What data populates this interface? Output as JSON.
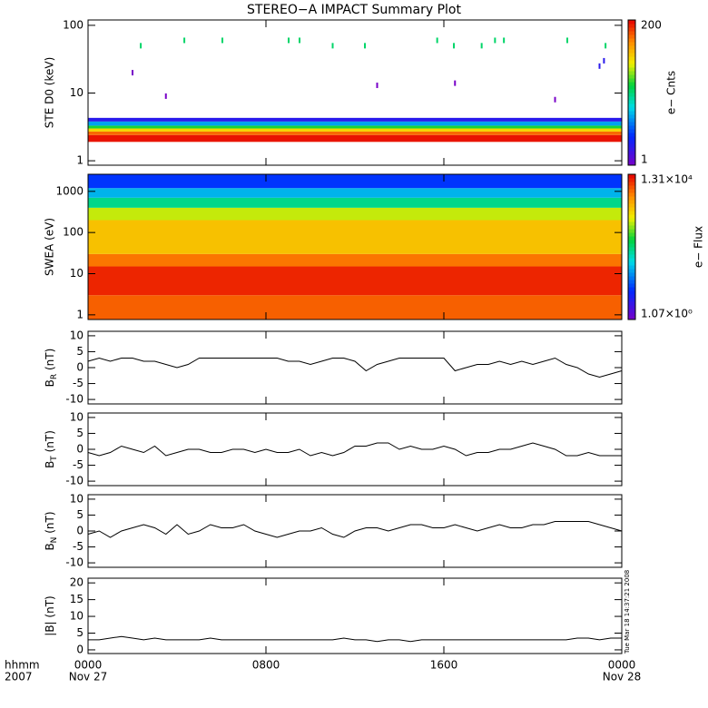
{
  "chart_data": [
    {
      "type": "heatmap",
      "title": "STEREO−A IMPACT Summary Plot",
      "ylabel": "STE D0 (keV)",
      "log_y": true,
      "ylim": [
        0.86,
        120
      ],
      "yticks": [
        1,
        10,
        100
      ],
      "edges": [
        1.9,
        2.4,
        2.7,
        3.0,
        3.3,
        3.8,
        4.3
      ],
      "levels": [
        180,
        110,
        50,
        20,
        6,
        2
      ],
      "points": {
        "x": [
          2.37,
          4.33,
          6.04,
          9.02,
          9.51,
          11.0,
          12.45,
          15.7,
          16.45,
          17.7,
          18.3,
          18.7,
          21.55,
          23.27,
          2.0,
          3.5,
          13.0,
          16.5,
          21.0,
          23.0,
          23.2
        ],
        "energy": [
          50,
          60,
          60,
          60,
          60,
          50,
          50,
          60,
          50,
          50,
          60,
          60,
          60,
          50,
          20,
          9,
          13,
          14,
          8,
          25,
          30
        ],
        "level": [
          15,
          15,
          15,
          15,
          15,
          15,
          15,
          15,
          15,
          15,
          15,
          15,
          15,
          15,
          1,
          1,
          1,
          1,
          1,
          2,
          2
        ]
      },
      "clim": [
        1,
        200
      ],
      "clabel": "e− Cnts"
    },
    {
      "type": "heatmap",
      "ylabel": "SWEA (eV)",
      "log_y": true,
      "ylim": [
        0.77,
        2600
      ],
      "yticks": [
        1,
        10,
        100,
        1000
      ],
      "edges": [
        0.77,
        3,
        15,
        30,
        200,
        400,
        700,
        1200,
        2600
      ],
      "levels": [
        5000,
        9000,
        4000,
        1500,
        600,
        100,
        30,
        8
      ],
      "clim": [
        1.07,
        13100
      ],
      "clim_labels": [
        "1.07×10⁰",
        "1.31×10⁴"
      ],
      "clabel": "e− Flux"
    },
    {
      "type": "line",
      "ylabel": {
        "text": "B",
        "sub": "R",
        "unit": " (nT)"
      },
      "ylim": [
        -11.4,
        11.4
      ],
      "yticks": [
        -10,
        -5,
        0,
        5,
        10
      ],
      "x": [
        0,
        0.5,
        1,
        1.5,
        2,
        2.5,
        3,
        3.5,
        4,
        4.5,
        5,
        5.5,
        6,
        6.5,
        7,
        7.5,
        8,
        8.5,
        9,
        9.5,
        10,
        10.5,
        11,
        11.5,
        12,
        12.5,
        13,
        13.5,
        14,
        14.5,
        15,
        15.5,
        16,
        16.5,
        17,
        17.5,
        18,
        18.5,
        19,
        19.5,
        20,
        20.5,
        21,
        21.5,
        22,
        22.5,
        23,
        23.5,
        24
      ],
      "values": [
        2,
        3,
        2,
        3,
        3,
        2,
        2,
        1,
        0,
        1,
        3,
        3,
        3,
        3,
        3,
        3,
        3,
        3,
        2,
        2,
        1,
        2,
        3,
        3,
        2,
        -1,
        1,
        2,
        3,
        3,
        3,
        3,
        3,
        -1,
        0,
        1,
        1,
        2,
        1,
        2,
        1,
        2,
        3,
        1,
        0,
        -2,
        -3,
        -2,
        -1
      ],
      "color": "#000000"
    },
    {
      "type": "line",
      "ylabel": {
        "text": "B",
        "sub": "T",
        "unit": " (nT)"
      },
      "ylim": [
        -11.4,
        11.4
      ],
      "yticks": [
        -10,
        -5,
        0,
        5,
        10
      ],
      "x": [
        0,
        0.5,
        1,
        1.5,
        2,
        2.5,
        3,
        3.5,
        4,
        4.5,
        5,
        5.5,
        6,
        6.5,
        7,
        7.5,
        8,
        8.5,
        9,
        9.5,
        10,
        10.5,
        11,
        11.5,
        12,
        12.5,
        13,
        13.5,
        14,
        14.5,
        15,
        15.5,
        16,
        16.5,
        17,
        17.5,
        18,
        18.5,
        19,
        19.5,
        20,
        20.5,
        21,
        21.5,
        22,
        22.5,
        23,
        23.5,
        24
      ],
      "values": [
        -1,
        -2,
        -1,
        1,
        0,
        -1,
        1,
        -2,
        -1,
        0,
        0,
        -1,
        -1,
        0,
        0,
        -1,
        0,
        -1,
        -1,
        0,
        -2,
        -1,
        -2,
        -1,
        1,
        1,
        2,
        2,
        0,
        1,
        0,
        0,
        1,
        0,
        -2,
        -1,
        -1,
        0,
        0,
        1,
        2,
        1,
        0,
        -2,
        -2,
        -1,
        -2,
        -2,
        -2
      ],
      "color": "#000000"
    },
    {
      "type": "line",
      "ylabel": {
        "text": "B",
        "sub": "N",
        "unit": " (nT)"
      },
      "ylim": [
        -11.4,
        11.4
      ],
      "yticks": [
        -10,
        -5,
        0,
        5,
        10
      ],
      "x": [
        0,
        0.5,
        1,
        1.5,
        2,
        2.5,
        3,
        3.5,
        4,
        4.5,
        5,
        5.5,
        6,
        6.5,
        7,
        7.5,
        8,
        8.5,
        9,
        9.5,
        10,
        10.5,
        11,
        11.5,
        12,
        12.5,
        13,
        13.5,
        14,
        14.5,
        15,
        15.5,
        16,
        16.5,
        17,
        17.5,
        18,
        18.5,
        19,
        19.5,
        20,
        20.5,
        21,
        21.5,
        22,
        22.5,
        23,
        23.5,
        24
      ],
      "values": [
        -1,
        0,
        -2,
        0,
        1,
        2,
        1,
        -1,
        2,
        -1,
        0,
        2,
        1,
        1,
        2,
        0,
        -1,
        -2,
        -1,
        0,
        0,
        1,
        -1,
        -2,
        0,
        1,
        1,
        0,
        1,
        2,
        2,
        1,
        1,
        2,
        1,
        0,
        1,
        2,
        1,
        1,
        2,
        2,
        3,
        3,
        3,
        3,
        2,
        1,
        0
      ],
      "color": "#000000"
    },
    {
      "type": "line",
      "ylabel": {
        "text": "|B|",
        "unit": " (nT)"
      },
      "ylim": [
        -1.1,
        21.4
      ],
      "yticks": [
        0,
        5,
        10,
        15,
        20
      ],
      "x": [
        0,
        0.5,
        1,
        1.5,
        2,
        2.5,
        3,
        3.5,
        4,
        4.5,
        5,
        5.5,
        6,
        6.5,
        7,
        7.5,
        8,
        8.5,
        9,
        9.5,
        10,
        10.5,
        11,
        11.5,
        12,
        12.5,
        13,
        13.5,
        14,
        14.5,
        15,
        15.5,
        16,
        16.5,
        17,
        17.5,
        18,
        18.5,
        19,
        19.5,
        20,
        20.5,
        21,
        21.5,
        22,
        22.5,
        23,
        23.5,
        24
      ],
      "values": [
        3,
        3,
        3.5,
        4,
        3.5,
        3,
        3.5,
        3,
        3,
        3,
        3,
        3.5,
        3,
        3,
        3,
        3,
        3,
        3,
        3,
        3,
        3,
        3,
        3,
        3.5,
        3,
        3,
        2.5,
        3,
        3,
        2.5,
        3,
        3,
        3,
        3,
        3,
        3,
        3,
        3,
        3,
        3,
        3,
        3,
        3,
        3,
        3.5,
        3.5,
        3,
        3.5,
        3.5
      ],
      "color": "#000000",
      "xlim": [
        0,
        24
      ],
      "xticks": [
        {
          "value": 0,
          "label": "0000"
        },
        {
          "value": 8,
          "label": "0800"
        },
        {
          "value": 16,
          "label": "1600"
        },
        {
          "value": 24,
          "label": "0000"
        }
      ],
      "xlabel": "hhmm",
      "year": "2007",
      "date_start": "Nov 27",
      "date_end": "Nov 28",
      "timestamp": "Tue Mar 18 14:37:21 2008"
    }
  ]
}
